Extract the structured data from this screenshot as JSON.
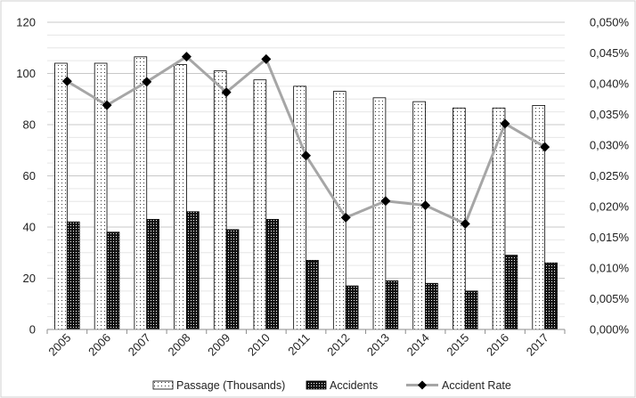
{
  "chart_data": {
    "type": "bar",
    "categories": [
      "2005",
      "2006",
      "2007",
      "2008",
      "2009",
      "2010",
      "2011",
      "2012",
      "2013",
      "2014",
      "2015",
      "2016",
      "2017"
    ],
    "series": [
      {
        "name": "Passage (Thousands)",
        "type": "bar",
        "axis": "left",
        "pattern": "dots",
        "values": [
          104,
          104,
          106.5,
          103.5,
          101,
          97.5,
          95,
          93,
          90.5,
          89,
          86.5,
          86.5,
          87.5
        ]
      },
      {
        "name": "Accidents",
        "type": "bar",
        "axis": "left",
        "pattern": "dense-checker",
        "values": [
          42,
          38,
          43,
          46,
          39,
          43,
          27,
          17,
          19,
          18,
          15,
          29,
          26
        ]
      },
      {
        "name": "Accident Rate",
        "type": "line",
        "axis": "right",
        "marker": "diamond",
        "values": [
          0.0404,
          0.0365,
          0.0403,
          0.0444,
          0.0386,
          0.044,
          0.0283,
          0.0182,
          0.0209,
          0.0202,
          0.0172,
          0.0335,
          0.0297
        ]
      }
    ],
    "ylim": [
      0,
      120
    ],
    "yticks": [
      "0",
      "20",
      "40",
      "60",
      "80",
      "100",
      "120"
    ],
    "y2lim": [
      0,
      0.05
    ],
    "y2ticks": [
      "0,000%",
      "0,005%",
      "0,010%",
      "0,015%",
      "0,020%",
      "0,025%",
      "0,030%",
      "0,035%",
      "0,040%",
      "0,045%",
      "0,050%"
    ],
    "grid": true,
    "legend_position": "bottom",
    "colors": {
      "line": "#a6a6a6",
      "marker": "#000000",
      "bar_edge": "#000000",
      "grid": "#d9d9d9"
    }
  }
}
